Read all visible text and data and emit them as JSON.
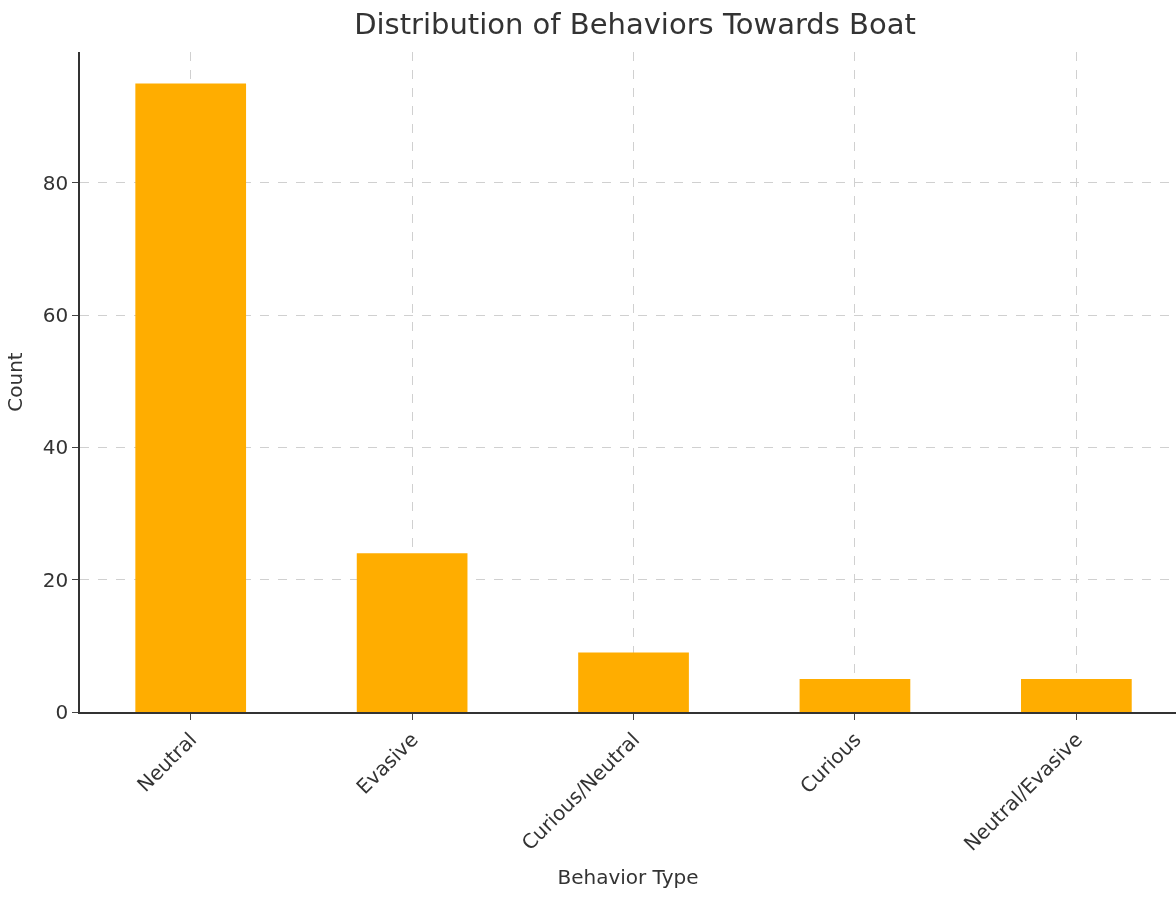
{
  "chart_data": {
    "type": "bar",
    "title": "Distribution of Behaviors Towards Boat",
    "xlabel": "Behavior Type",
    "ylabel": "Count",
    "categories": [
      "Neutral",
      "Evasive",
      "Curious/Neutral",
      "Curious",
      "Neutral/Evasive"
    ],
    "values": [
      95,
      24,
      9,
      5,
      5
    ],
    "color": "#ffad00",
    "ylim": [
      0,
      99.75
    ],
    "yticks": [
      0,
      20,
      40,
      60,
      80
    ],
    "grid": true
  }
}
